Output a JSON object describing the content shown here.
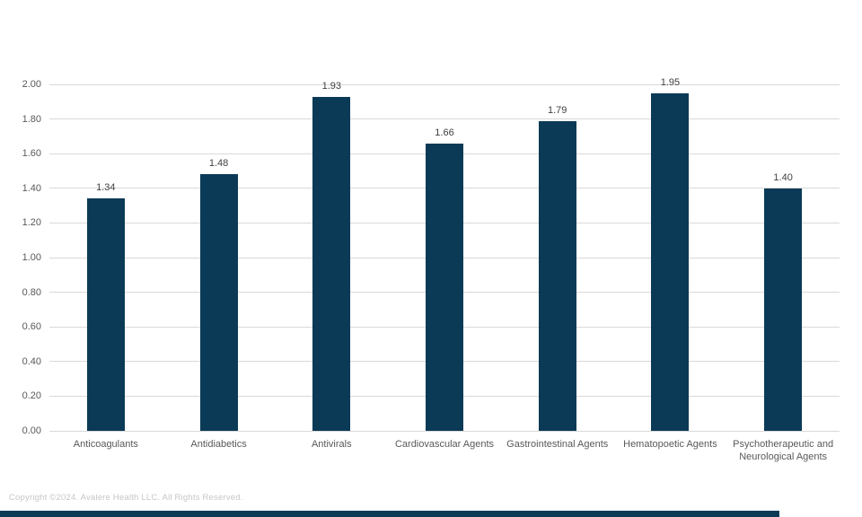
{
  "chart_data": {
    "type": "bar",
    "categories": [
      "Anticoagulants",
      "Antidiabetics",
      "Antivirals",
      "Cardiovascular Agents",
      "Gastrointestinal Agents",
      "Hematopoetic Agents",
      "Psychotherapeutic and\nNeurological Agents"
    ],
    "values": [
      1.34,
      1.48,
      1.93,
      1.66,
      1.79,
      1.95,
      1.4
    ],
    "value_labels": [
      "1.34",
      "1.48",
      "1.93",
      "1.66",
      "1.79",
      "1.95",
      "1.40"
    ],
    "title": "",
    "xlabel": "",
    "ylabel": "",
    "ylim": [
      0,
      2.0
    ],
    "ytick_labels": [
      "0.00",
      "0.20",
      "0.40",
      "0.60",
      "0.80",
      "1.00",
      "1.20",
      "1.40",
      "1.60",
      "1.80",
      "2.00"
    ],
    "grid": true,
    "legend": "none",
    "bar_color": "#0a3a56"
  },
  "colors": {
    "bar": "#0a3a56",
    "gridline": "#d9d9d9",
    "axis_text": "#595959",
    "value_label_text": "#404040",
    "copyright_text": "#c6c6c6",
    "background": "#ffffff"
  },
  "footer": {
    "copyright": "Copyright ©2024. Avalere Health LLC. All Rights Reserved.",
    "accent_bar_color": "#0a3a56"
  }
}
